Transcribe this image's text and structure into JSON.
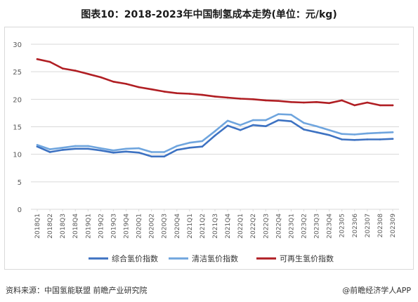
{
  "title": "图表10：2018-2023年中国制氢成本走势(单位：元/kg)",
  "source": "资料来源：中国氢能联盟 前瞻产业研究院",
  "watermark_brand": "@前瞻经济学人APP",
  "colors": {
    "series1": "#3d72c2",
    "series2": "#6fa5de",
    "series3": "#b01e23",
    "grid": "#d9d9d9",
    "axis_text": "#595959"
  },
  "chart_data": {
    "type": "line",
    "categories": [
      "2018Q1",
      "2018Q2",
      "2018Q3",
      "2018Q4",
      "2019Q1",
      "2019Q2",
      "2019Q3",
      "2019Q4",
      "2020Q1",
      "2020Q2",
      "2020Q3",
      "2020Q4",
      "2021Q1",
      "2021Q2",
      "2021Q3",
      "2021Q4",
      "2022Q1",
      "2022Q2",
      "2022Q3",
      "2022Q4",
      "2023Q1",
      "2023Q2",
      "2023Q3",
      "2023Q4",
      "202305",
      "202306",
      "202307",
      "202308",
      "202309"
    ],
    "ylim": [
      0,
      30
    ],
    "yticks": [
      0,
      5,
      10,
      15,
      20,
      25,
      30
    ],
    "grid": true,
    "legend_position": "bottom",
    "series": [
      {
        "name": "综合氢价指数",
        "values": [
          11.4,
          10.4,
          10.8,
          11.0,
          11.0,
          10.7,
          10.3,
          10.5,
          10.3,
          9.6,
          9.6,
          10.8,
          11.2,
          11.4,
          13.4,
          15.2,
          14.4,
          15.3,
          15.1,
          16.2,
          16.0,
          14.5,
          14.0,
          13.5,
          12.7,
          12.6,
          12.7,
          12.7,
          12.8
        ]
      },
      {
        "name": "清洁氢价指数",
        "values": [
          11.7,
          10.9,
          11.2,
          11.5,
          11.5,
          11.1,
          10.7,
          11.0,
          11.1,
          10.4,
          10.4,
          11.5,
          12.1,
          12.4,
          14.2,
          16.1,
          15.3,
          16.2,
          16.2,
          17.3,
          17.2,
          15.7,
          15.1,
          14.4,
          13.7,
          13.6,
          13.8,
          13.9,
          14.0
        ]
      },
      {
        "name": "可再生氢价指数",
        "values": [
          27.3,
          26.8,
          25.6,
          25.2,
          24.6,
          24.0,
          23.2,
          22.8,
          22.2,
          21.8,
          21.4,
          21.1,
          21.0,
          20.8,
          20.5,
          20.3,
          20.1,
          20.0,
          19.8,
          19.7,
          19.5,
          19.4,
          19.5,
          19.3,
          19.8,
          18.9,
          19.4,
          18.9,
          18.9
        ]
      }
    ]
  }
}
